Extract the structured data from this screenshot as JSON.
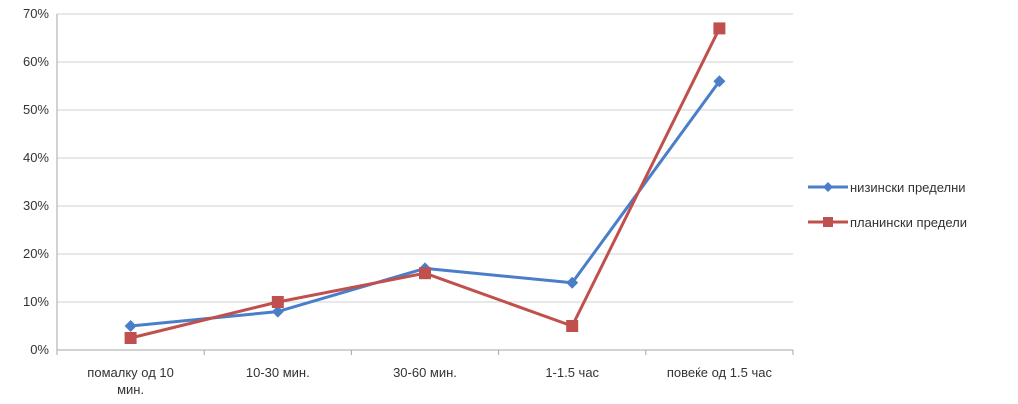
{
  "chart_data": {
    "type": "line",
    "title": "",
    "xlabel": "",
    "ylabel": "",
    "categories": [
      [
        "помалку од 10",
        "мин."
      ],
      [
        "10-30 мин."
      ],
      [
        "30-60 мин."
      ],
      [
        "1-1.5 час"
      ],
      [
        "повеќе од 1.5 час"
      ]
    ],
    "y_ticks": [
      "0%",
      "10%",
      "20%",
      "30%",
      "40%",
      "50%",
      "60%",
      "70%"
    ],
    "ylim": [
      0,
      0.7
    ],
    "grid": true,
    "legend_position": "right",
    "series": [
      {
        "name": "низински пределни",
        "color": "#4A7EC9",
        "marker": "diamond",
        "values": [
          0.05,
          0.08,
          0.17,
          0.14,
          0.56
        ]
      },
      {
        "name": "плaнински предели",
        "color": "#C0504D",
        "marker": "square",
        "values": [
          0.025,
          0.1,
          0.16,
          0.05,
          0.67
        ]
      }
    ]
  }
}
